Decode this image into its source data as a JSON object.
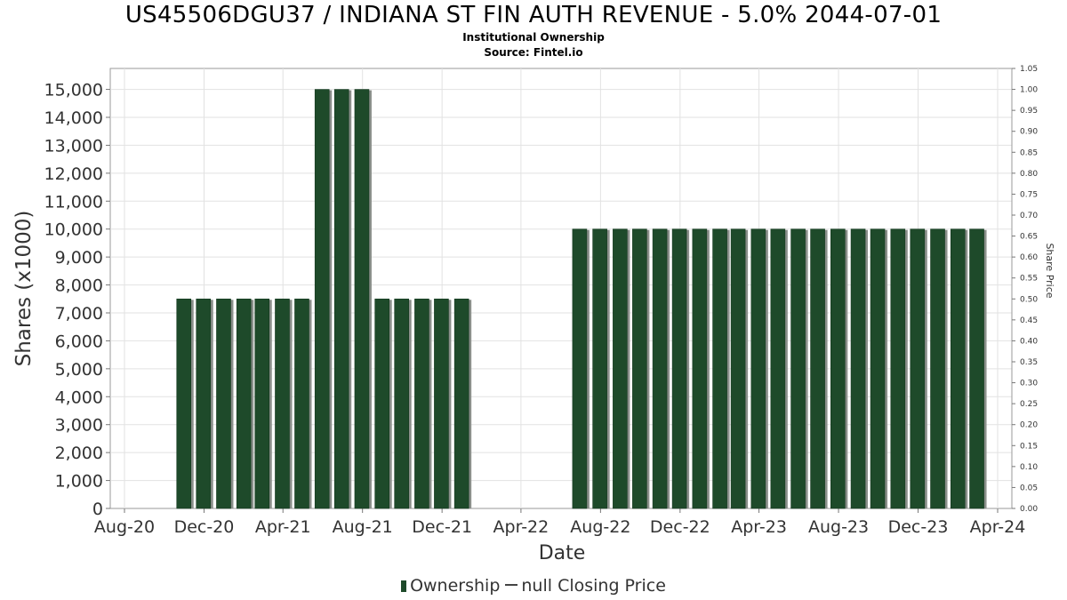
{
  "title": "US45506DGU37 / INDIANA ST FIN AUTH REVENUE - 5.0% 2044-07-01",
  "subtitle": "Institutional Ownership",
  "source": "Source: Fintel.io",
  "legend": {
    "ownership_label": "Ownership",
    "price_label": "null Closing Price"
  },
  "colors": {
    "bar": "#1e4a2a",
    "bar_shadow": "#8a8f8a",
    "grid": "#e2e2e2"
  },
  "chart_data": {
    "type": "bar",
    "title": "US45506DGU37 / INDIANA ST FIN AUTH REVENUE - 5.0% 2044-07-01",
    "subtitle": "Institutional Ownership",
    "xlabel": "Date",
    "ylabel": "Shares (x1000)",
    "y2label": "Share Price",
    "x_range": [
      "2020-08-01",
      "2024-04-01"
    ],
    "ylim": [
      0,
      15750
    ],
    "y_ticks": [
      0,
      1000,
      2000,
      3000,
      4000,
      5000,
      6000,
      7000,
      8000,
      9000,
      10000,
      11000,
      12000,
      13000,
      14000,
      15000
    ],
    "y_tick_labels": [
      "0",
      "1,000",
      "2,000",
      "3,000",
      "4,000",
      "5,000",
      "6,000",
      "7,000",
      "8,000",
      "9,000",
      "10,000",
      "11,000",
      "12,000",
      "13,000",
      "14,000",
      "15,000"
    ],
    "y2lim": [
      0,
      1.05
    ],
    "y2_tick_labels": [
      "0.00",
      "0.05",
      "0.10",
      "0.15",
      "0.20",
      "0.25",
      "0.30",
      "0.35",
      "0.40",
      "0.45",
      "0.50",
      "0.55",
      "0.60",
      "0.65",
      "0.70",
      "0.75",
      "0.80",
      "0.85",
      "0.90",
      "0.95",
      "1.00",
      "1.05"
    ],
    "x_ticks": [
      {
        "date": "2020-08-01",
        "label": "Aug-20"
      },
      {
        "date": "2020-12-01",
        "label": "Dec-20"
      },
      {
        "date": "2021-04-01",
        "label": "Apr-21"
      },
      {
        "date": "2021-08-01",
        "label": "Aug-21"
      },
      {
        "date": "2021-12-01",
        "label": "Dec-21"
      },
      {
        "date": "2022-04-01",
        "label": "Apr-22"
      },
      {
        "date": "2022-08-01",
        "label": "Aug-22"
      },
      {
        "date": "2022-12-01",
        "label": "Dec-22"
      },
      {
        "date": "2023-04-01",
        "label": "Apr-23"
      },
      {
        "date": "2023-08-01",
        "label": "Aug-23"
      },
      {
        "date": "2023-12-01",
        "label": "Dec-23"
      },
      {
        "date": "2024-04-01",
        "label": "Apr-24"
      }
    ],
    "grid": true,
    "legend_position": "bottom",
    "series": [
      {
        "name": "Ownership",
        "x": [
          "2020-10-31",
          "2020-11-30",
          "2020-12-31",
          "2021-01-31",
          "2021-02-28",
          "2021-03-31",
          "2021-04-30",
          "2021-05-31",
          "2021-06-30",
          "2021-07-31",
          "2021-08-31",
          "2021-09-30",
          "2021-10-31",
          "2021-11-30",
          "2021-12-31",
          "2022-06-30",
          "2022-07-31",
          "2022-08-31",
          "2022-09-30",
          "2022-10-31",
          "2022-11-30",
          "2022-12-31",
          "2023-01-31",
          "2023-02-28",
          "2023-03-31",
          "2023-04-30",
          "2023-05-31",
          "2023-06-30",
          "2023-07-31",
          "2023-08-31",
          "2023-09-30",
          "2023-10-31",
          "2023-11-30",
          "2023-12-31",
          "2024-01-31",
          "2024-02-29"
        ],
        "values": [
          7500,
          7500,
          7500,
          7500,
          7500,
          7500,
          7500,
          15000,
          15000,
          15000,
          7500,
          7500,
          7500,
          7500,
          7500,
          10000,
          10000,
          10000,
          10000,
          10000,
          10000,
          10000,
          10000,
          10000,
          10000,
          10000,
          10000,
          10000,
          10000,
          10000,
          10000,
          10000,
          10000,
          10000,
          10000,
          10000
        ]
      }
    ]
  }
}
